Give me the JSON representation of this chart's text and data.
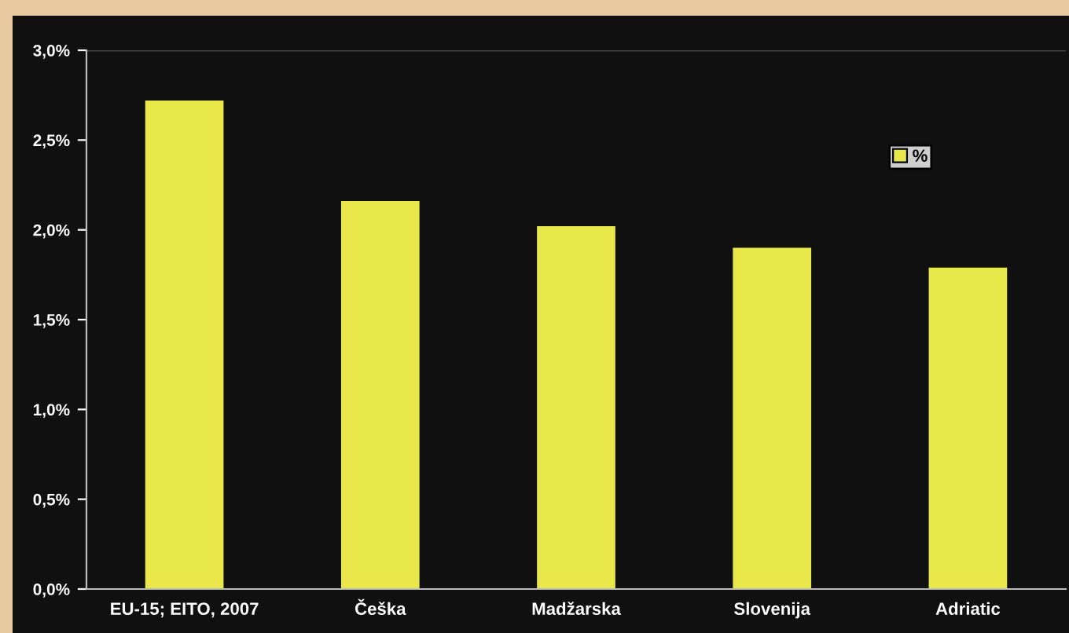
{
  "chart_data": {
    "type": "bar",
    "categories": [
      "EU-15; EITO, 2007",
      "Češka",
      "Madžarska",
      "Slovenija",
      "Adriatic"
    ],
    "series": [
      {
        "name": "%",
        "color": "#e8e84a",
        "values": [
          2.72,
          2.16,
          2.02,
          1.9,
          1.79
        ]
      }
    ],
    "ylim": [
      0,
      3.0
    ],
    "yticks": [
      {
        "value": 0,
        "label": "0,0%"
      },
      {
        "value": 0.5,
        "label": "0,5%"
      },
      {
        "value": 1.0,
        "label": "1,0%"
      },
      {
        "value": 1.5,
        "label": "1,5%"
      },
      {
        "value": 2.0,
        "label": "2,0%"
      },
      {
        "value": 2.5,
        "label": "2,5%"
      },
      {
        "value": 3.0,
        "label": "3,0%"
      }
    ],
    "grid": false,
    "legend": "top right"
  }
}
